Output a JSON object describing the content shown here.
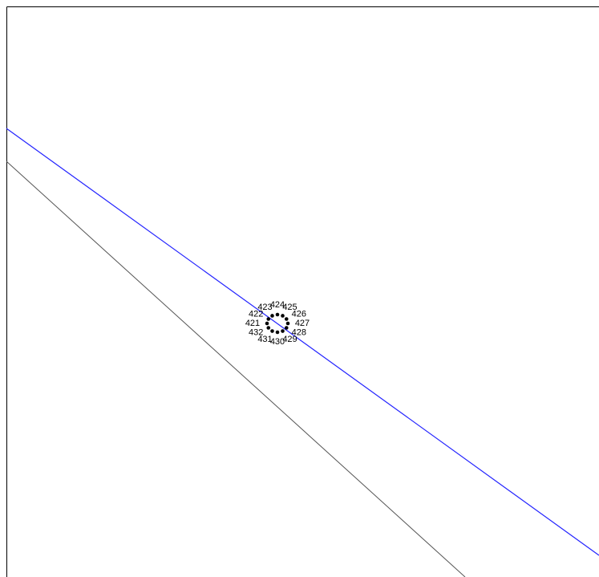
{
  "nodes": [
    {
      "label": "421"
    },
    {
      "label": "422"
    },
    {
      "label": "423"
    },
    {
      "label": "424"
    },
    {
      "label": "425"
    },
    {
      "label": "426"
    },
    {
      "label": "427"
    },
    {
      "label": "428"
    },
    {
      "label": "429"
    },
    {
      "label": "430"
    },
    {
      "label": "431"
    },
    {
      "label": "432"
    }
  ]
}
